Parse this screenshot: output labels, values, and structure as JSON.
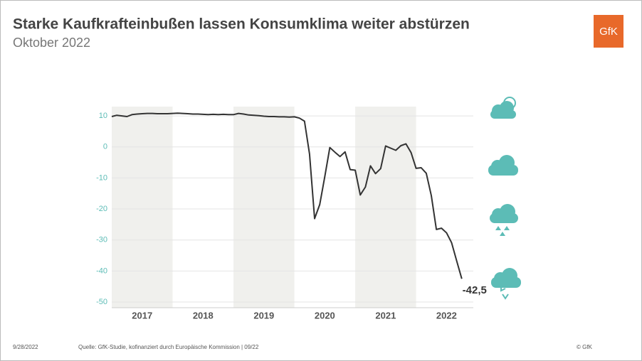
{
  "header": {
    "title": "Starke Kaufkrafteinbußen lassen Konsumklima weiter abstürzen",
    "subtitle": "Oktober 2022",
    "logo": "GfK"
  },
  "chart_data": {
    "type": "line",
    "color": "#333333",
    "x": [
      2017,
      2017.083,
      2017.167,
      2017.25,
      2017.333,
      2017.417,
      2017.5,
      2017.583,
      2017.667,
      2017.75,
      2017.833,
      2017.917,
      2018,
      2018.083,
      2018.167,
      2018.25,
      2018.333,
      2018.417,
      2018.5,
      2018.583,
      2018.667,
      2018.75,
      2018.833,
      2018.917,
      2019,
      2019.083,
      2019.167,
      2019.25,
      2019.333,
      2019.417,
      2019.5,
      2019.583,
      2019.667,
      2019.75,
      2019.833,
      2019.917,
      2020,
      2020.083,
      2020.167,
      2020.25,
      2020.333,
      2020.417,
      2020.5,
      2020.583,
      2020.667,
      2020.75,
      2020.833,
      2020.917,
      2021,
      2021.083,
      2021.167,
      2021.25,
      2021.333,
      2021.417,
      2021.5,
      2021.583,
      2021.667,
      2021.75,
      2021.833,
      2021.917,
      2022,
      2022.083,
      2022.167,
      2022.25,
      2022.333,
      2022.417,
      2022.5,
      2022.583,
      2022.667,
      2022.75
    ],
    "values": [
      9.8,
      10.2,
      10.0,
      9.8,
      10.4,
      10.6,
      10.7,
      10.8,
      10.8,
      10.7,
      10.7,
      10.7,
      10.8,
      10.9,
      10.8,
      10.7,
      10.6,
      10.6,
      10.5,
      10.4,
      10.5,
      10.4,
      10.5,
      10.4,
      10.4,
      10.8,
      10.6,
      10.3,
      10.2,
      10.1,
      9.9,
      9.8,
      9.8,
      9.7,
      9.7,
      9.6,
      9.7,
      9.3,
      8.3,
      -2.3,
      -23.1,
      -18.6,
      -9.6,
      -0.2,
      -1.7,
      -3.1,
      -1.6,
      -7.3,
      -7.5,
      -15.5,
      -12.9,
      -6.1,
      -8.6,
      -7.0,
      0.3,
      -0.4,
      -1.1,
      0.4,
      1.0,
      -1.8,
      -6.9,
      -6.7,
      -8.5,
      -15.7,
      -26.6,
      -26.2,
      -27.7,
      -30.9,
      -36.8,
      -42.5
    ],
    "annotation": "-42,5",
    "xlim": [
      2017,
      2022.94
    ],
    "xticks": [
      {
        "value": 2017.5,
        "label": "2017"
      },
      {
        "value": 2018.5,
        "label": "2018"
      },
      {
        "value": 2019.5,
        "label": "2019"
      },
      {
        "value": 2020.5,
        "label": "2020"
      },
      {
        "value": 2021.5,
        "label": "2021"
      },
      {
        "value": 2022.5,
        "label": "2022"
      }
    ],
    "ylim": [
      -50,
      13
    ],
    "yticks": [
      -50,
      -40,
      -30,
      -20,
      -10,
      0,
      10
    ],
    "grid": true,
    "band_color": "#f0f0ed"
  },
  "footer": {
    "date": "9/28/2022",
    "source": "Quelle: GfK-Studie, kofinanziert durch Europäische Kommission | 09/22",
    "copyright": "© GfK"
  }
}
